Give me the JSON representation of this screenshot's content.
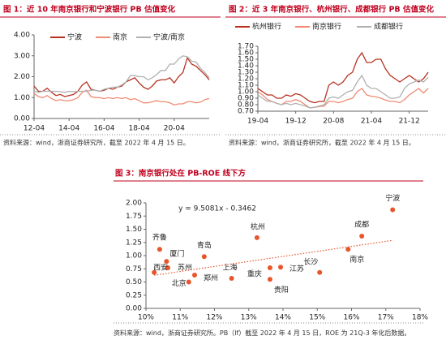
{
  "chart_data": [
    {
      "type": "line",
      "title": "图 1：近 10 年南京银行和宁波银行 PB 估值变化",
      "source": "资料来源：wind，浙商证券研究所，截至 2022 年 4 月 15 日。",
      "x": [
        "12-04",
        "12-07",
        "12-10",
        "13-01",
        "13-04",
        "13-07",
        "13-10",
        "14-01",
        "14-04",
        "14-07",
        "14-10",
        "15-01",
        "15-04",
        "15-07",
        "15-10",
        "16-01",
        "16-04",
        "16-07",
        "16-10",
        "17-01",
        "17-04",
        "17-07",
        "17-10",
        "18-01",
        "18-04",
        "18-07",
        "18-10",
        "19-01",
        "19-04",
        "19-07",
        "19-10",
        "20-01",
        "20-04",
        "20-07",
        "20-10",
        "21-01",
        "21-04",
        "21-07",
        "21-10",
        "22-01",
        "22-04"
      ],
      "xticks": [
        "12-04",
        "14-04",
        "16-04",
        "18-04",
        "20-04"
      ],
      "ylim": [
        0,
        4
      ],
      "yticks": [
        {
          "value": 0,
          "label": "0.00"
        },
        {
          "value": 1,
          "label": "1.00"
        },
        {
          "value": 2,
          "label": "2.00"
        },
        {
          "value": 3,
          "label": "3.00"
        },
        {
          "value": 4,
          "label": "4.00"
        }
      ],
      "grid": false,
      "series": [
        {
          "name": "宁波",
          "color": "#b7311f",
          "values": [
            1.55,
            1.3,
            1.3,
            1.45,
            1.25,
            1.1,
            1.15,
            1.05,
            1.1,
            1.15,
            1.3,
            1.6,
            1.75,
            1.4,
            1.35,
            1.3,
            1.35,
            1.45,
            1.4,
            1.5,
            1.55,
            1.75,
            1.85,
            1.95,
            1.7,
            1.5,
            1.4,
            1.55,
            1.8,
            1.85,
            1.85,
            1.95,
            1.7,
            2.0,
            2.2,
            2.9,
            2.6,
            2.5,
            2.3,
            2.1,
            1.85
          ]
        },
        {
          "name": "南京",
          "color": "#f08a73",
          "values": [
            1.2,
            1.05,
            1.0,
            1.1,
            0.95,
            0.85,
            0.9,
            0.85,
            0.85,
            0.9,
            1.0,
            1.25,
            1.35,
            1.05,
            1.0,
            1.0,
            0.95,
            1.0,
            0.95,
            1.0,
            0.95,
            1.0,
            0.9,
            0.95,
            0.85,
            0.75,
            0.75,
            0.8,
            0.85,
            0.8,
            0.8,
            0.75,
            0.65,
            0.7,
            0.7,
            0.8,
            0.8,
            0.75,
            0.78,
            0.9,
            0.95
          ]
        },
        {
          "name": "宁波/南京",
          "color": "#b0b0b0",
          "values": [
            1.3,
            1.25,
            1.3,
            1.3,
            1.3,
            1.3,
            1.28,
            1.25,
            1.3,
            1.28,
            1.3,
            1.3,
            1.3,
            1.35,
            1.35,
            1.3,
            1.4,
            1.45,
            1.5,
            1.5,
            1.6,
            1.75,
            2.05,
            2.05,
            2.0,
            2.0,
            1.85,
            1.95,
            2.1,
            2.3,
            2.3,
            2.6,
            2.6,
            2.85,
            3.0,
            2.95,
            2.75,
            2.7,
            2.4,
            2.2,
            1.95
          ]
        }
      ]
    },
    {
      "type": "line",
      "title": "图 2：近 3 年南京银行、杭州银行、成都银行 PB 估值变化",
      "source": "资料来源：wind，浙商证券研究所，截至 2022 年 4 月 15 日。",
      "x": [
        "19-04",
        "19-05",
        "19-06",
        "19-07",
        "19-08",
        "19-09",
        "19-10",
        "19-11",
        "19-12",
        "20-01",
        "20-02",
        "20-03",
        "20-04",
        "20-05",
        "20-06",
        "20-07",
        "20-08",
        "20-09",
        "20-10",
        "20-11",
        "20-12",
        "21-01",
        "21-02",
        "21-03",
        "21-04",
        "21-05",
        "21-06",
        "21-07",
        "21-08",
        "21-09",
        "21-10",
        "21-11",
        "21-12",
        "22-01",
        "22-02",
        "22-03",
        "22-04"
      ],
      "xticks": [
        "19-04",
        "19-12",
        "20-08",
        "21-04",
        "21-12"
      ],
      "ylim": [
        0.7,
        1.7
      ],
      "yticks": [
        {
          "value": 0.7,
          "label": "0.70"
        },
        {
          "value": 0.8,
          "label": "0.80"
        },
        {
          "value": 0.9,
          "label": "0.90"
        },
        {
          "value": 1.0,
          "label": "1.00"
        },
        {
          "value": 1.1,
          "label": "1.10"
        },
        {
          "value": 1.2,
          "label": "1.20"
        },
        {
          "value": 1.3,
          "label": "1.30"
        },
        {
          "value": 1.4,
          "label": "1.40"
        },
        {
          "value": 1.5,
          "label": "1.50"
        },
        {
          "value": 1.6,
          "label": "1.60"
        },
        {
          "value": 1.7,
          "label": "1.70"
        }
      ],
      "grid": false,
      "series": [
        {
          "name": "杭州银行",
          "color": "#b7311f",
          "values": [
            1.05,
            1.0,
            0.95,
            0.95,
            0.9,
            0.9,
            0.95,
            0.93,
            0.97,
            0.95,
            0.9,
            0.85,
            0.83,
            0.85,
            0.85,
            1.1,
            1.15,
            1.1,
            1.15,
            1.25,
            1.3,
            1.5,
            1.6,
            1.45,
            1.45,
            1.5,
            1.5,
            1.35,
            1.25,
            1.2,
            1.15,
            1.2,
            1.25,
            1.2,
            1.15,
            1.2,
            1.3
          ]
        },
        {
          "name": "南京银行",
          "color": "#f08a73",
          "values": [
            1.0,
            0.95,
            0.88,
            0.85,
            0.82,
            0.8,
            0.85,
            0.85,
            0.88,
            0.85,
            0.8,
            0.75,
            0.76,
            0.77,
            0.78,
            0.85,
            0.85,
            0.83,
            0.85,
            0.88,
            0.9,
            1.0,
            1.05,
            0.95,
            0.93,
            0.92,
            0.9,
            0.87,
            0.85,
            0.85,
            0.83,
            0.88,
            0.95,
            1.0,
            1.05,
            0.98,
            1.05
          ]
        },
        {
          "name": "成都银行",
          "color": "#b0b0b0",
          "values": [
            0.95,
            0.9,
            0.85,
            0.85,
            0.82,
            0.8,
            0.82,
            0.8,
            0.82,
            0.8,
            0.78,
            0.75,
            0.76,
            0.78,
            0.8,
            0.9,
            0.92,
            0.9,
            0.95,
            1.0,
            1.02,
            1.15,
            1.25,
            1.1,
            1.05,
            1.05,
            1.0,
            0.95,
            0.9,
            0.9,
            0.92,
            1.05,
            1.12,
            1.15,
            1.18,
            1.15,
            1.22
          ]
        }
      ]
    },
    {
      "type": "scatter",
      "title": "图 3：南京银行处在 PB-ROE 线下方",
      "source": "资料来源：wind，浙商证券研究所。PB（lf）截至 2022 年 4 月 15 日，ROE 为 21Q-3 年化后数据。",
      "color": "#e8552c",
      "labels": [
        "宁波",
        "成都",
        "南京",
        "杭州",
        "齐鲁",
        "青岛",
        "厦门",
        "苏州",
        "西安",
        "北京",
        "郑州",
        "上海",
        "重庆",
        "江苏",
        "贵阳",
        "长沙"
      ],
      "x": [
        17.2,
        16.3,
        15.9,
        13.24,
        10.4,
        11.7,
        10.6,
        10.64,
        10.24,
        11.25,
        11.42,
        12.5,
        13.62,
        13.93,
        13.62,
        15.07
      ],
      "values": [
        1.87,
        1.37,
        1.12,
        1.34,
        1.12,
        0.98,
        0.89,
        0.77,
        0.68,
        0.5,
        0.63,
        0.57,
        0.77,
        0.78,
        0.55,
        0.68
      ],
      "trendline": {
        "label": "y = 9.5081x - 0.3462",
        "slope": 9.5081,
        "intercept": -0.3462
      },
      "xlim": [
        10,
        18
      ],
      "xticks": [
        {
          "value": 10,
          "label": "10%"
        },
        {
          "value": 11,
          "label": "11%"
        },
        {
          "value": 12,
          "label": "12%"
        },
        {
          "value": 13,
          "label": "13%"
        },
        {
          "value": 14,
          "label": "14%"
        },
        {
          "value": 15,
          "label": "15%"
        },
        {
          "value": 16,
          "label": "16%"
        },
        {
          "value": 17,
          "label": "17%"
        },
        {
          "value": 18,
          "label": "18%"
        }
      ],
      "ylim": [
        0,
        2
      ],
      "yticks": [
        {
          "value": 0,
          "label": "0.00"
        },
        {
          "value": 0.25,
          "label": "0.25"
        },
        {
          "value": 0.5,
          "label": "0.50"
        },
        {
          "value": 0.75,
          "label": "0.75"
        },
        {
          "value": 1,
          "label": "1.00"
        },
        {
          "value": 1.25,
          "label": "1.25"
        },
        {
          "value": 1.5,
          "label": "1.50"
        },
        {
          "value": 1.75,
          "label": "1.75"
        },
        {
          "value": 2,
          "label": "2.00"
        }
      ]
    }
  ]
}
